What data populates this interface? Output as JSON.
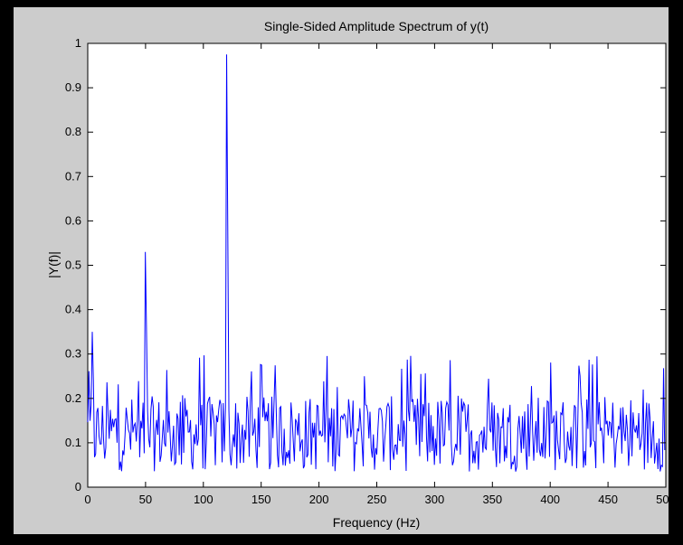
{
  "figure": {
    "background": "#cccccc",
    "frame_color": "#000000"
  },
  "chart_data": {
    "type": "line",
    "title": "Single-Sided Amplitude Spectrum of y(t)",
    "xlabel": "Frequency (Hz)",
    "ylabel": "|Y(f)|",
    "xlim": [
      0,
      500
    ],
    "ylim": [
      0,
      1
    ],
    "xticks": [
      0,
      50,
      100,
      150,
      200,
      250,
      300,
      350,
      400,
      450,
      500
    ],
    "xtick_labels": [
      "0",
      "50",
      "100",
      "150",
      "200",
      "250",
      "300",
      "350",
      "400",
      "450",
      "500"
    ],
    "yticks": [
      0,
      0.1,
      0.2,
      0.3,
      0.4,
      0.5,
      0.6,
      0.7,
      0.8,
      0.9,
      1
    ],
    "ytick_labels": [
      "0",
      "0.1",
      "0.2",
      "0.3",
      "0.4",
      "0.5",
      "0.6",
      "0.7",
      "0.8",
      "0.9",
      "1"
    ],
    "grid": false,
    "line_color": "#0000ff",
    "frequency_step": 0.9766,
    "peaks": [
      {
        "x": 50,
        "y": 0.53,
        "neighbor": 0.36
      },
      {
        "x": 120,
        "y": 0.975,
        "neighbor": 0.59
      },
      {
        "x": 4,
        "y": 0.35,
        "neighbor": 0.24
      }
    ],
    "noise_level": {
      "mean": 0.12,
      "max": 0.3
    }
  }
}
